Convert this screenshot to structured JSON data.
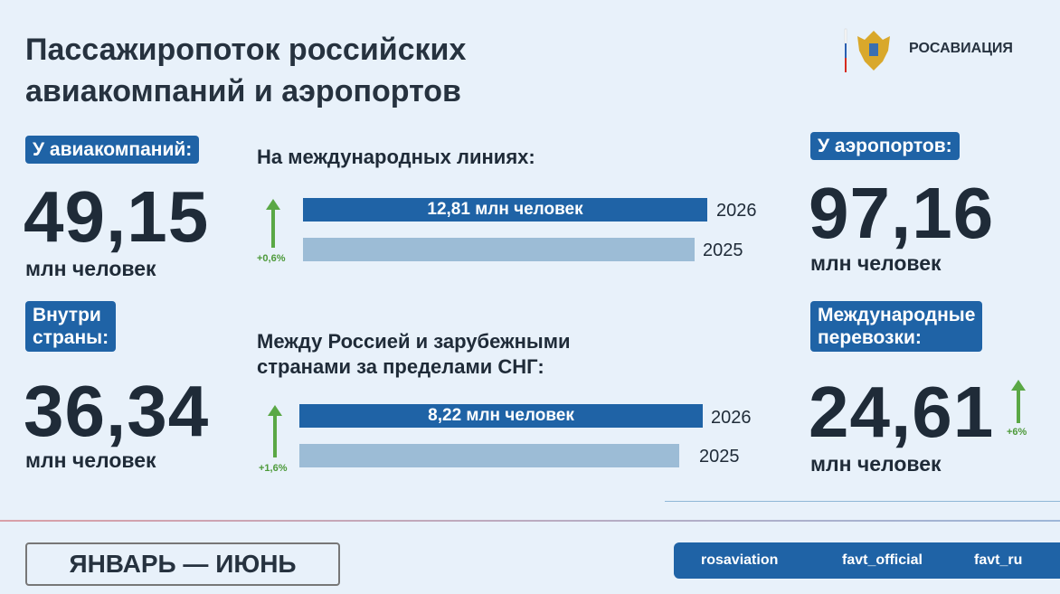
{
  "header": {
    "title_lines": [
      "Пассажиропоток российских",
      "авиакомпаний и аэропортов"
    ],
    "logo_text": "РОСАВИАЦИЯ"
  },
  "airlines": {
    "badge": "У авиакомпаний:",
    "value": "49,15",
    "unit": "млн человек"
  },
  "domestic": {
    "badge_lines": [
      "Внутри",
      "страны:"
    ],
    "value": "36,34",
    "unit": "млн человек"
  },
  "airports": {
    "badge": "У аэропортов:",
    "value": "97,16",
    "unit": "млн человек"
  },
  "international": {
    "badge_lines": [
      "Международные",
      "перевозки:"
    ],
    "value": "24,61",
    "unit": "млн человек",
    "change": "+6%"
  },
  "intl_lines": {
    "title_lines": [
      "На международных линиях:"
    ],
    "bar_label": "12,81 млн человек",
    "years": [
      "2026",
      "2025"
    ],
    "change": "+0,6%"
  },
  "non_cis": {
    "title_lines": [
      "Между Россией и зарубежными",
      "странами за пределами СНГ:"
    ],
    "bar_label": "8,22 млн человек",
    "years": [
      "2026",
      "2025"
    ],
    "change": "+1,6%"
  },
  "footer": {
    "period": "ЯНВАРЬ — ИЮНЬ",
    "socials": [
      "rosaviation",
      "favt_official",
      "favt_ru"
    ]
  }
}
